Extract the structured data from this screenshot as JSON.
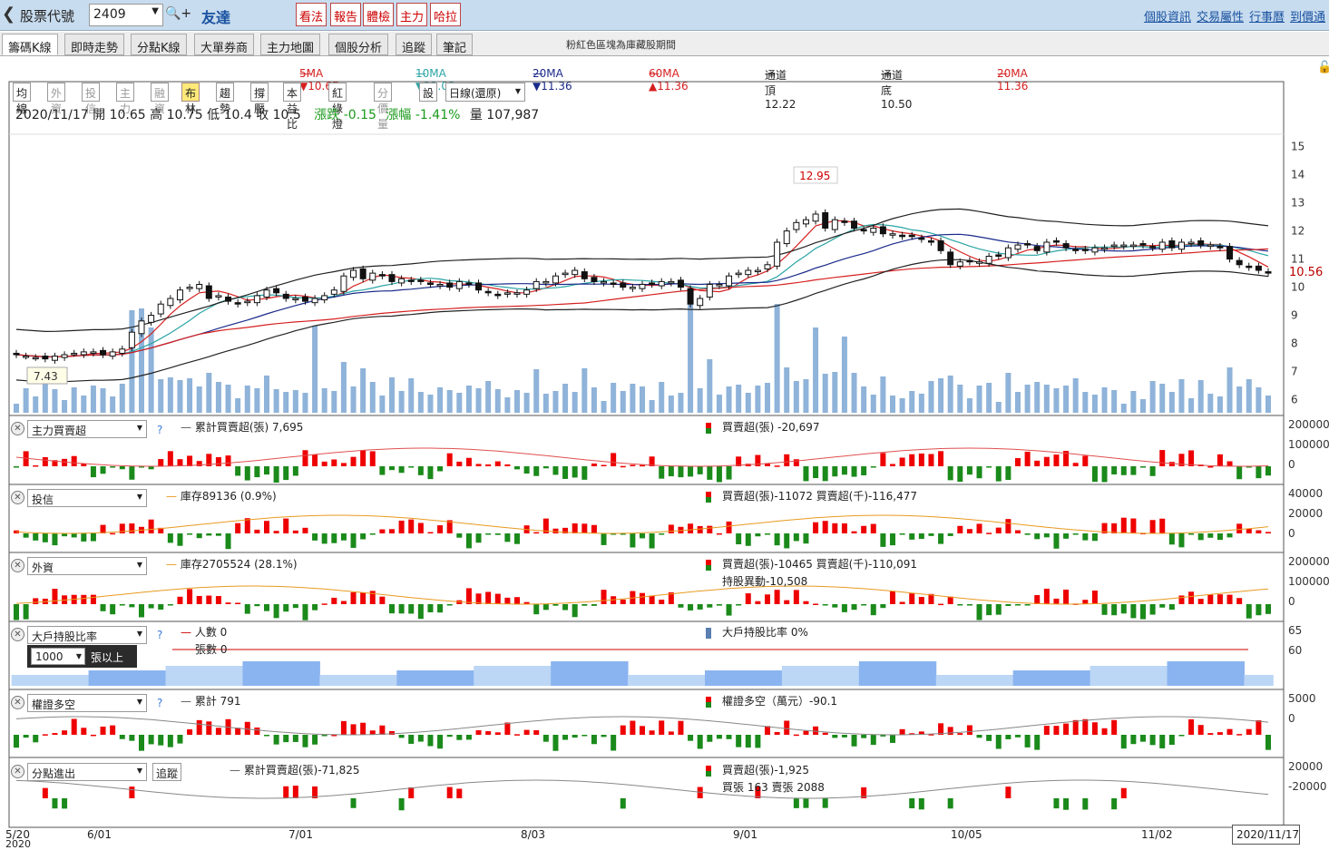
{
  "topbar": {
    "label": "股票代號",
    "code": "2409",
    "name": "友達",
    "buttons": [
      "看法",
      "報告",
      "體檢",
      "主力",
      "哈拉"
    ],
    "links": [
      "個股資訊",
      "交易屬性",
      "行事曆",
      "到價通"
    ]
  },
  "tabs": [
    "籌碼K線",
    "即時走勢",
    "分點K線",
    "大單券商",
    "主力地圖",
    "個股分析",
    "追蹤",
    "筆記"
  ],
  "tab_note": "粉紅色區塊為庫藏股期間",
  "ma_legend": [
    {
      "label": "5MA ▼10.67",
      "color": "#d62020"
    },
    {
      "label": "10MA ▼11.09",
      "color": "#2aa4a4"
    },
    {
      "label": "20MA ▼11.36",
      "color": "#1a2a8a"
    },
    {
      "label": "60MA ▲11.36",
      "color": "#d62020"
    },
    {
      "label": "通道頂 12.22",
      "color": "#222222"
    },
    {
      "label": "通道底 10.50",
      "color": "#222222"
    },
    {
      "label": "20MA 11.36",
      "color": "#d62020"
    }
  ],
  "toolbar": [
    "均線",
    "外資",
    "投信",
    "主力",
    "融資",
    "布林",
    "趨勢",
    "撐壓",
    "本益比",
    "紅綠燈",
    "分價量",
    "設",
    "日線(還原)"
  ],
  "ohlc": {
    "date": "2020/11/17",
    "open": "開 10.65",
    "high": "高 10.75",
    "low": "低 10.4",
    "close": "收 10.5",
    "chg": "漲跌 -0.15",
    "pct": "漲幅 -1.41%",
    "vol": "量 107,987"
  },
  "price_axis": [
    "15",
    "14",
    "13",
    "12",
    "11",
    "10",
    "9",
    "8",
    "7",
    "6"
  ],
  "last_price": "10.56",
  "peak_label": "12.95",
  "low_label": "7.43",
  "panels": [
    {
      "sel": "主力買賣超",
      "left": "累計買賣超(張) 7,695",
      "right": "買賣超(張) -20,697",
      "right2": "",
      "axis": [
        "200000",
        "100000",
        "0"
      ]
    },
    {
      "sel": "投信",
      "left": "庫存89136 (0.9%)",
      "right": "買賣超(張)-11072 買賣超(千)-116,477",
      "right2": "",
      "axis": [
        "40000",
        "20000",
        "0"
      ]
    },
    {
      "sel": "外資",
      "left": "庫存2705524 (28.1%)",
      "right": "買賣超(張)-10465 買賣超(千)-110,091",
      "right2": "持股異動-10,508",
      "axis": [
        "200000",
        "100000",
        "0"
      ]
    },
    {
      "sel": "大戶持股比率",
      "left": "人數 0",
      "left2": "張數 0",
      "right": "大戶持股比率 0%",
      "right2": "",
      "axis": [
        "65",
        "60"
      ],
      "sub": "1000",
      "sub_label": "張以上"
    },
    {
      "sel": "權證多空",
      "left": "累計 791",
      "right": "權證多空（萬元）-90.1",
      "right2": "",
      "axis": [
        "5000",
        "0"
      ]
    },
    {
      "sel": "分點進出",
      "left": "累計買賣超(張)-71,825",
      "right": "買賣超(張)-1,925",
      "right2": "買張 163 賣張 2088",
      "axis": [
        "20000",
        "-20000"
      ],
      "btn": "追蹤"
    }
  ],
  "xaxis": [
    "5/20",
    "6/01",
    "7/01",
    "8/03",
    "9/01",
    "10/05",
    "11/02"
  ],
  "xaxis_year": "2020",
  "cursor_date": "2020/11/17",
  "chart_data": {
    "type": "candlestick",
    "closes": [
      7.6,
      7.55,
      7.5,
      7.45,
      7.55,
      7.6,
      7.65,
      7.7,
      7.7,
      7.6,
      7.7,
      7.8,
      8.4,
      8.8,
      9.0,
      9.4,
      9.6,
      9.9,
      10.0,
      10.1,
      9.6,
      9.7,
      9.5,
      9.4,
      9.5,
      9.7,
      9.9,
      9.8,
      9.6,
      9.6,
      9.5,
      9.6,
      9.7,
      9.9,
      10.4,
      10.6,
      10.3,
      10.5,
      10.4,
      10.2,
      10.3,
      10.2,
      10.2,
      10.1,
      10.1,
      10.0,
      10.2,
      10.1,
      9.9,
      9.8,
      9.7,
      9.8,
      9.8,
      9.9,
      10.2,
      10.2,
      10.4,
      10.5,
      10.6,
      10.3,
      10.2,
      10.2,
      10.1,
      10.0,
      10.0,
      10.1,
      10.1,
      10.2,
      10.2,
      10.0,
      9.4,
      9.6,
      10.1,
      10.1,
      10.4,
      10.5,
      10.6,
      10.6,
      10.8,
      11.6,
      12.0,
      12.3,
      12.4,
      12.6,
      12.1,
      12.4,
      12.3,
      12.1,
      12.0,
      12.1,
      11.9,
      11.9,
      11.8,
      11.8,
      11.7,
      11.6,
      11.3,
      10.8,
      10.9,
      10.9,
      10.9,
      11.1,
      11.1,
      11.4,
      11.5,
      11.5,
      11.3,
      11.6,
      11.6,
      11.4,
      11.3,
      11.3,
      11.4,
      11.4,
      11.5,
      11.5,
      11.5,
      11.5,
      11.4,
      11.6,
      11.4,
      11.6,
      11.6,
      11.5,
      11.5,
      11.4,
      11.0,
      10.8,
      10.7,
      10.6,
      10.5
    ],
    "volume_ref": "relative",
    "price_range": [
      5.6,
      15.6
    ]
  }
}
